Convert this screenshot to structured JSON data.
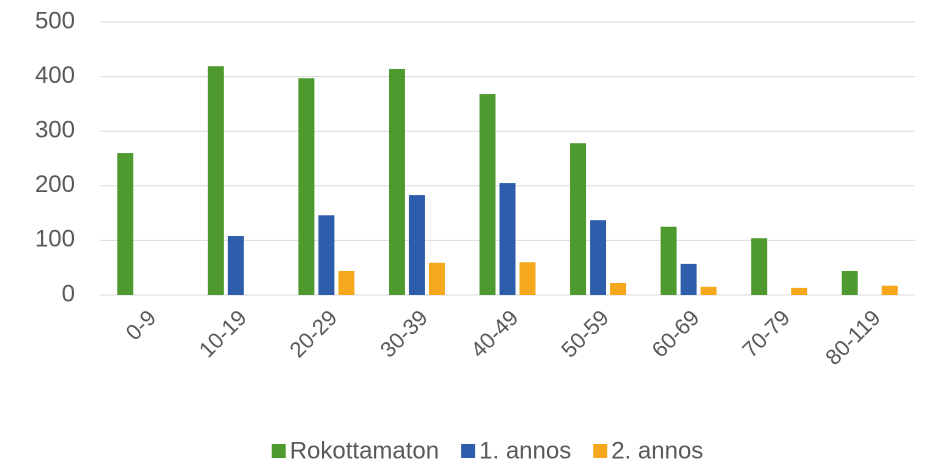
{
  "chart_data": {
    "type": "bar",
    "categories": [
      "0-9",
      "10-19",
      "20-29",
      "30-39",
      "40-49",
      "50-59",
      "60-69",
      "70-79",
      "80-119"
    ],
    "series": [
      {
        "name": "Rokottamaton",
        "color": "#4e9a2f",
        "values": [
          260,
          419,
          397,
          414,
          368,
          278,
          125,
          104,
          44
        ]
      },
      {
        "name": "1. annos",
        "color": "#2e5dab",
        "values": [
          0,
          108,
          146,
          183,
          205,
          137,
          57,
          0,
          0
        ]
      },
      {
        "name": "2. annos",
        "color": "#f6a81c",
        "values": [
          0,
          0,
          44,
          59,
          60,
          22,
          15,
          13,
          17
        ]
      }
    ],
    "ylim": [
      0,
      500
    ],
    "yticks": [
      0,
      100,
      200,
      300,
      400,
      500
    ],
    "grid": true,
    "legend": "bottom"
  }
}
